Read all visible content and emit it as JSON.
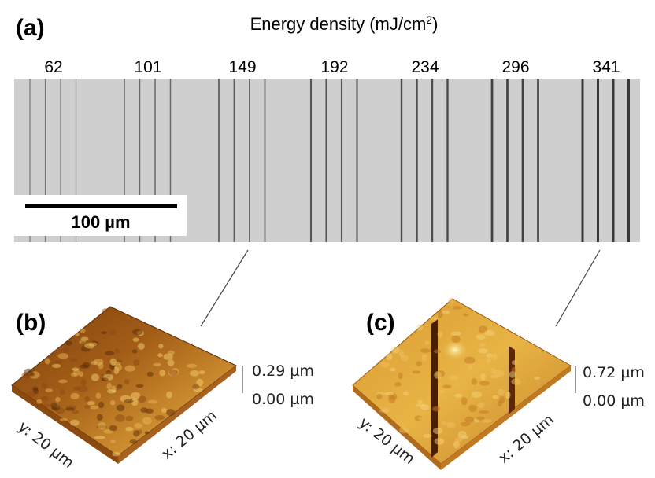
{
  "panel_a": {
    "label": "(a)",
    "title": "Energy density (mJ/cm",
    "title_sup": "2",
    "title_end": ")",
    "energies": [
      62,
      101,
      149,
      192,
      234,
      296,
      341
    ],
    "scale_bar": "100 µm"
  },
  "panel_b": {
    "label": "(b)",
    "z_max": "0.29 µm",
    "z_min": "0.00 µm",
    "y_axis": "y: 20 µm",
    "x_axis": "x: 20 µm"
  },
  "panel_c": {
    "label": "(c)",
    "z_max": "0.72 µm",
    "z_min": "0.00 µm",
    "y_axis": "y: 20 µm",
    "x_axis": "x: 20 µm"
  }
}
